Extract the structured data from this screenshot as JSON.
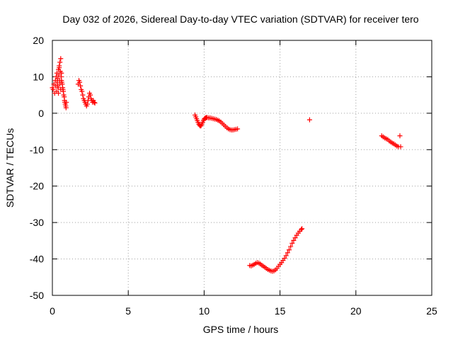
{
  "chart_data": {
    "type": "scatter",
    "title": "Day 032 of 2026, Sidereal Day-to-day VTEC variation (SDTVAR) for receiver tero",
    "xlabel": "GPS time / hours",
    "ylabel": "SDTVAR / TECUs",
    "xlim": [
      0,
      25
    ],
    "ylim": [
      -50,
      20
    ],
    "xticks": [
      0,
      5,
      10,
      15,
      20,
      25
    ],
    "yticks": [
      -50,
      -40,
      -30,
      -20,
      -10,
      0,
      10,
      20
    ],
    "xtick_labels": [
      "0",
      "5",
      "10",
      "15",
      "20",
      "25"
    ],
    "ytick_labels": [
      "-50",
      "-40",
      "-30",
      "-20",
      "-10",
      "0",
      "10",
      "20"
    ],
    "grid": true,
    "marker": "+",
    "color": "#ff0000",
    "series": [
      {
        "name": "SDTVAR",
        "x": [
          0.0,
          0.05,
          0.1,
          0.15,
          0.2,
          0.22,
          0.25,
          0.28,
          0.3,
          0.32,
          0.35,
          0.38,
          0.4,
          0.42,
          0.45,
          0.48,
          0.5,
          0.52,
          0.55,
          0.58,
          0.6,
          0.62,
          0.65,
          0.68,
          0.7,
          0.72,
          0.75,
          0.78,
          0.8,
          0.82,
          0.85,
          0.88,
          0.9,
          0.92,
          0.45,
          0.5,
          0.55,
          0.6,
          0.4,
          0.35,
          1.7,
          1.75,
          1.8,
          1.85,
          1.9,
          1.95,
          2.0,
          2.05,
          2.1,
          2.15,
          2.2,
          2.25,
          2.3,
          2.35,
          2.4,
          2.45,
          2.5,
          2.55,
          2.6,
          2.65,
          2.7,
          2.75,
          2.8,
          9.4,
          9.45,
          9.5,
          9.55,
          9.6,
          9.65,
          9.7,
          9.75,
          9.8,
          9.85,
          9.9,
          9.95,
          10.0,
          10.05,
          10.1,
          10.15,
          10.2,
          10.3,
          10.4,
          10.5,
          10.6,
          10.7,
          10.8,
          10.9,
          11.0,
          11.1,
          11.2,
          11.3,
          11.4,
          11.5,
          11.6,
          11.7,
          11.8,
          11.9,
          12.0,
          12.1,
          12.2,
          13.0,
          13.1,
          13.2,
          13.3,
          13.4,
          13.5,
          13.6,
          13.7,
          13.8,
          13.9,
          14.0,
          14.1,
          14.2,
          14.3,
          14.4,
          14.5,
          14.6,
          14.7,
          14.8,
          14.9,
          15.0,
          15.1,
          15.2,
          15.3,
          15.4,
          15.5,
          15.6,
          15.7,
          15.8,
          15.9,
          16.0,
          16.1,
          16.2,
          16.3,
          16.4,
          16.45,
          16.95,
          21.7,
          21.8,
          21.9,
          22.0,
          22.1,
          22.2,
          22.3,
          22.4,
          22.5,
          22.6,
          22.7,
          22.8,
          22.9,
          22.95
        ],
        "y": [
          7.0,
          6.5,
          8.0,
          5.5,
          9.0,
          7.5,
          10.0,
          6.0,
          11.0,
          8.5,
          9.5,
          7.0,
          12.0,
          10.5,
          13.0,
          9.0,
          14.0,
          11.5,
          15.0,
          10.0,
          9.0,
          8.5,
          8.0,
          7.0,
          6.5,
          6.0,
          5.0,
          4.5,
          3.5,
          3.0,
          2.5,
          2.0,
          1.5,
          3.0,
          12.5,
          8.0,
          6.5,
          11.0,
          5.5,
          7.5,
          8.0,
          9.0,
          8.5,
          7.5,
          6.5,
          6.0,
          5.0,
          4.0,
          3.5,
          3.0,
          2.5,
          2.0,
          2.5,
          3.5,
          4.5,
          5.5,
          5.0,
          4.0,
          3.5,
          3.0,
          3.5,
          3.0,
          2.8,
          -0.5,
          -1.0,
          -1.5,
          -2.0,
          -2.5,
          -3.0,
          -3.3,
          -3.5,
          -3.4,
          -3.0,
          -2.5,
          -2.0,
          -1.6,
          -1.4,
          -1.3,
          -1.2,
          -1.2,
          -1.3,
          -1.3,
          -1.4,
          -1.5,
          -1.6,
          -1.7,
          -1.9,
          -2.1,
          -2.4,
          -2.8,
          -3.2,
          -3.6,
          -4.0,
          -4.3,
          -4.5,
          -4.6,
          -4.6,
          -4.5,
          -4.4,
          -4.3,
          -41.8,
          -41.9,
          -41.7,
          -41.5,
          -41.2,
          -41.0,
          -41.1,
          -41.4,
          -41.7,
          -42.0,
          -42.3,
          -42.6,
          -42.9,
          -43.1,
          -43.3,
          -43.4,
          -43.3,
          -43.0,
          -42.6,
          -42.0,
          -41.5,
          -41.0,
          -40.4,
          -39.8,
          -39.1,
          -38.3,
          -37.5,
          -36.6,
          -35.7,
          -34.9,
          -34.2,
          -33.5,
          -32.9,
          -32.4,
          -31.9,
          -31.7,
          -1.8,
          -6.2,
          -6.5,
          -6.8,
          -7.0,
          -7.2,
          -7.6,
          -7.9,
          -8.2,
          -8.4,
          -8.7,
          -9.0,
          -9.2,
          -6.2,
          -9.2
        ]
      }
    ]
  }
}
